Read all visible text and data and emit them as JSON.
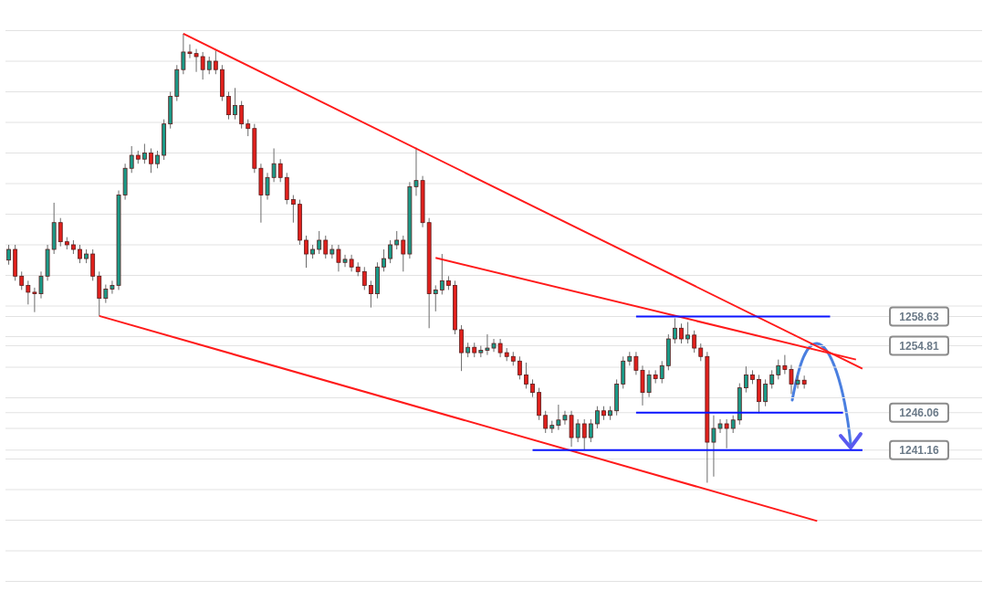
{
  "chart_data": {
    "type": "candlestick",
    "categories": [
      null,
      null,
      null,
      null,
      null,
      null,
      null,
      null,
      null,
      null,
      null,
      null,
      null,
      null,
      null,
      null,
      null,
      null,
      null,
      null,
      null,
      null,
      null,
      null,
      null,
      null,
      null,
      null,
      null,
      null,
      null,
      null,
      null,
      null,
      null,
      null,
      null,
      null,
      null,
      null,
      null,
      null,
      null,
      null,
      null,
      null,
      null,
      null,
      null,
      null,
      null,
      null,
      null,
      null,
      null,
      null,
      null,
      null,
      null,
      null,
      null,
      null,
      null,
      null,
      null,
      null,
      null,
      null,
      null,
      null,
      null,
      null,
      null,
      null,
      null,
      null,
      null,
      null,
      null,
      null,
      null,
      null,
      null,
      null,
      null,
      null,
      null,
      null,
      null,
      null,
      null,
      null,
      null,
      null,
      null,
      null,
      null,
      null,
      null,
      null,
      null,
      null,
      null,
      null,
      null,
      null,
      null,
      null,
      null,
      null,
      null,
      null,
      null,
      null,
      null,
      null,
      null,
      null,
      null,
      null,
      null,
      null,
      null,
      null,
      null,
      null,
      null,
      null,
      null,
      null,
      null,
      null,
      null,
      null,
      null,
      null,
      null,
      null,
      null,
      null,
      null,
      null,
      null,
      null,
      null,
      null,
      null,
      null,
      null,
      null,
      null
    ],
    "ohlc": [
      [
        1266.0,
        1268.0,
        1265.4,
        1267.4
      ],
      [
        1267.4,
        1268.0,
        1263.3,
        1263.9
      ],
      [
        1263.9,
        1264.5,
        1262.1,
        1262.7
      ],
      [
        1262.7,
        1263.3,
        1260.2,
        1261.8
      ],
      [
        1261.8,
        1262.4,
        1259.2,
        1261.6
      ],
      [
        1261.6,
        1264.5,
        1261.0,
        1263.9
      ],
      [
        1263.9,
        1268.0,
        1263.3,
        1267.4
      ],
      [
        1267.4,
        1273.5,
        1266.8,
        1270.9
      ],
      [
        1270.9,
        1271.5,
        1267.8,
        1268.4
      ],
      [
        1268.4,
        1269.0,
        1267.4,
        1268.0
      ],
      [
        1268.0,
        1268.6,
        1266.8,
        1267.4
      ],
      [
        1267.4,
        1268.0,
        1265.6,
        1266.2
      ],
      [
        1266.2,
        1267.4,
        1265.6,
        1266.8
      ],
      [
        1266.8,
        1267.4,
        1263.3,
        1263.9
      ],
      [
        1263.9,
        1264.5,
        1258.7,
        1261.0
      ],
      [
        1261.0,
        1262.8,
        1260.4,
        1262.2
      ],
      [
        1262.2,
        1263.3,
        1261.6,
        1262.7
      ],
      [
        1262.7,
        1275.1,
        1262.1,
        1274.5
      ],
      [
        1274.5,
        1278.6,
        1273.9,
        1278.0
      ],
      [
        1278.0,
        1280.9,
        1277.4,
        1279.7
      ],
      [
        1279.7,
        1280.3,
        1278.6,
        1279.2
      ],
      [
        1279.2,
        1281.2,
        1278.6,
        1280.0
      ],
      [
        1280.0,
        1280.6,
        1277.4,
        1278.6
      ],
      [
        1278.6,
        1280.3,
        1278.0,
        1279.7
      ],
      [
        1279.7,
        1284.4,
        1279.1,
        1283.8
      ],
      [
        1283.8,
        1288.0,
        1283.2,
        1287.4
      ],
      [
        1287.4,
        1291.5,
        1286.8,
        1290.9
      ],
      [
        1290.9,
        1295.6,
        1290.3,
        1293.2
      ],
      [
        1293.2,
        1294.2,
        1292.4,
        1293.0
      ],
      [
        1293.0,
        1293.6,
        1290.6,
        1292.6
      ],
      [
        1292.6,
        1293.2,
        1289.6,
        1290.9
      ],
      [
        1290.9,
        1292.6,
        1290.3,
        1292.0
      ],
      [
        1292.0,
        1293.4,
        1290.3,
        1290.9
      ],
      [
        1290.9,
        1291.5,
        1286.8,
        1287.4
      ],
      [
        1287.4,
        1288.0,
        1284.4,
        1285.0
      ],
      [
        1285.0,
        1288.5,
        1284.4,
        1286.2
      ],
      [
        1286.2,
        1286.8,
        1283.2,
        1283.8
      ],
      [
        1283.8,
        1284.4,
        1282.2,
        1283.2
      ],
      [
        1283.2,
        1283.8,
        1277.4,
        1278.0
      ],
      [
        1278.0,
        1278.6,
        1270.9,
        1274.5
      ],
      [
        1274.5,
        1277.4,
        1273.9,
        1276.8
      ],
      [
        1276.8,
        1280.6,
        1276.2,
        1278.6
      ],
      [
        1278.6,
        1279.2,
        1276.2,
        1276.8
      ],
      [
        1276.8,
        1277.4,
        1273.3,
        1273.9
      ],
      [
        1273.9,
        1274.5,
        1270.9,
        1273.3
      ],
      [
        1273.3,
        1273.9,
        1268.0,
        1268.6
      ],
      [
        1268.6,
        1269.2,
        1265.0,
        1266.8
      ],
      [
        1266.8,
        1268.0,
        1266.2,
        1267.4
      ],
      [
        1267.4,
        1269.8,
        1266.8,
        1268.6
      ],
      [
        1268.6,
        1269.2,
        1266.2,
        1266.8
      ],
      [
        1266.8,
        1268.0,
        1266.2,
        1267.4
      ],
      [
        1267.4,
        1268.0,
        1264.5,
        1265.7
      ],
      [
        1265.7,
        1266.7,
        1265.1,
        1266.1
      ],
      [
        1266.1,
        1266.7,
        1264.5,
        1265.1
      ],
      [
        1265.1,
        1265.7,
        1263.9,
        1264.5
      ],
      [
        1264.5,
        1265.1,
        1262.1,
        1262.7
      ],
      [
        1262.7,
        1263.3,
        1259.8,
        1261.6
      ],
      [
        1261.6,
        1265.7,
        1261.0,
        1265.1
      ],
      [
        1265.1,
        1267.4,
        1264.5,
        1266.2
      ],
      [
        1266.2,
        1268.6,
        1265.6,
        1268.0
      ],
      [
        1268.0,
        1269.8,
        1267.4,
        1268.6
      ],
      [
        1268.6,
        1269.2,
        1264.5,
        1266.8
      ],
      [
        1266.8,
        1276.2,
        1266.2,
        1275.6
      ],
      [
        1275.6,
        1280.7,
        1274.4,
        1276.4
      ],
      [
        1276.4,
        1277.0,
        1270.3,
        1270.9
      ],
      [
        1270.9,
        1271.5,
        1257.1,
        1261.6
      ],
      [
        1261.6,
        1262.7,
        1259.3,
        1262.1
      ],
      [
        1262.1,
        1266.8,
        1261.5,
        1263.3
      ],
      [
        1263.3,
        1263.9,
        1262.1,
        1262.7
      ],
      [
        1262.7,
        1263.3,
        1256.3,
        1256.9
      ],
      [
        1256.9,
        1257.5,
        1251.5,
        1253.9
      ],
      [
        1253.9,
        1255.2,
        1253.3,
        1254.6
      ],
      [
        1254.6,
        1255.2,
        1253.3,
        1253.9
      ],
      [
        1253.9,
        1254.8,
        1253.3,
        1254.2
      ],
      [
        1254.2,
        1256.3,
        1253.6,
        1254.5
      ],
      [
        1254.5,
        1255.7,
        1254.0,
        1255.1
      ],
      [
        1255.1,
        1255.7,
        1253.3,
        1253.9
      ],
      [
        1253.9,
        1254.5,
        1252.8,
        1253.4
      ],
      [
        1253.4,
        1254.0,
        1252.2,
        1252.8
      ],
      [
        1252.8,
        1253.4,
        1250.4,
        1251.0
      ],
      [
        1251.0,
        1252.6,
        1249.2,
        1249.8
      ],
      [
        1249.8,
        1250.4,
        1248.1,
        1248.7
      ],
      [
        1248.7,
        1249.3,
        1245.1,
        1245.7
      ],
      [
        1245.7,
        1246.3,
        1243.4,
        1244.0
      ],
      [
        1244.0,
        1245.0,
        1243.4,
        1244.4
      ],
      [
        1244.4,
        1247.1,
        1243.8,
        1245.1
      ],
      [
        1245.1,
        1246.3,
        1244.5,
        1245.7
      ],
      [
        1245.7,
        1246.3,
        1241.6,
        1242.8
      ],
      [
        1242.8,
        1245.2,
        1242.2,
        1244.6
      ],
      [
        1244.6,
        1245.2,
        1241.2,
        1242.8
      ],
      [
        1242.8,
        1245.2,
        1242.2,
        1244.6
      ],
      [
        1244.6,
        1246.9,
        1244.0,
        1246.3
      ],
      [
        1246.3,
        1246.9,
        1245.1,
        1245.7
      ],
      [
        1245.7,
        1246.9,
        1245.1,
        1246.3
      ],
      [
        1246.3,
        1250.4,
        1245.7,
        1249.8
      ],
      [
        1249.8,
        1253.4,
        1249.2,
        1252.8
      ],
      [
        1252.8,
        1254.0,
        1252.2,
        1253.4
      ],
      [
        1253.4,
        1254.0,
        1251.0,
        1251.6
      ],
      [
        1251.6,
        1252.2,
        1247.0,
        1248.7
      ],
      [
        1248.7,
        1251.6,
        1248.1,
        1251.0
      ],
      [
        1251.0,
        1251.6,
        1249.9,
        1250.5
      ],
      [
        1250.5,
        1252.8,
        1249.9,
        1252.2
      ],
      [
        1252.2,
        1256.3,
        1251.6,
        1255.7
      ],
      [
        1255.7,
        1258.4,
        1255.1,
        1257.1
      ],
      [
        1257.1,
        1257.7,
        1255.1,
        1255.7
      ],
      [
        1255.7,
        1257.9,
        1255.1,
        1256.2
      ],
      [
        1256.2,
        1256.8,
        1253.9,
        1254.5
      ],
      [
        1254.5,
        1255.1,
        1252.8,
        1253.4
      ],
      [
        1253.4,
        1254.0,
        1236.9,
        1242.2
      ],
      [
        1242.2,
        1245.7,
        1237.7,
        1244.0
      ],
      [
        1244.0,
        1245.2,
        1243.4,
        1244.6
      ],
      [
        1244.6,
        1245.2,
        1241.4,
        1244.0
      ],
      [
        1244.0,
        1245.7,
        1243.4,
        1245.1
      ],
      [
        1245.1,
        1249.9,
        1244.5,
        1249.3
      ],
      [
        1249.3,
        1252.1,
        1248.7,
        1251.0
      ],
      [
        1251.0,
        1251.6,
        1249.8,
        1250.4
      ],
      [
        1250.4,
        1251.0,
        1246.0,
        1247.5
      ],
      [
        1247.5,
        1250.4,
        1246.9,
        1249.8
      ],
      [
        1249.8,
        1251.6,
        1249.2,
        1251.0
      ],
      [
        1251.0,
        1253.0,
        1250.4,
        1252.2
      ],
      [
        1252.2,
        1253.6,
        1251.1,
        1251.7
      ],
      [
        1251.7,
        1252.3,
        1248.5,
        1249.8
      ],
      [
        1249.8,
        1250.9,
        1249.2,
        1250.3
      ],
      [
        1250.3,
        1250.9,
        1249.2,
        1249.8
      ],
      null,
      null,
      null,
      null,
      null,
      null,
      null,
      null,
      null,
      null,
      null,
      null,
      null,
      null,
      null,
      null,
      null,
      null,
      null,
      null,
      null,
      null,
      null,
      null,
      null,
      null,
      null
    ],
    "colors": [
      "#1b9a88",
      "#e0201c",
      "#e0201c",
      "#e0201c",
      "#e0201c",
      "#1b9a88",
      "#1b9a88",
      "#1b9a88",
      "#e0201c",
      "#e0201c",
      "#e0201c",
      "#e0201c",
      "#1b9a88",
      "#e0201c",
      "#e0201c",
      "#1b9a88",
      "#1b9a88",
      "#1b9a88",
      "#1b9a88",
      "#1b9a88",
      "#e0201c",
      "#1b9a88",
      "#e0201c",
      "#1b9a88",
      "#1b9a88",
      "#1b9a88",
      "#1b9a88",
      "#1b9a88",
      "#e0201c",
      "#e0201c",
      "#e0201c",
      "#1b9a88",
      "#e0201c",
      "#e0201c",
      "#e0201c",
      "#1b9a88",
      "#e0201c",
      "#e0201c",
      "#e0201c",
      "#e0201c",
      "#1b9a88",
      "#1b9a88",
      "#e0201c",
      "#e0201c",
      "#e0201c",
      "#e0201c",
      "#e0201c",
      "#1b9a88",
      "#1b9a88",
      "#e0201c",
      "#1b9a88",
      "#e0201c",
      "#1b9a88",
      "#e0201c",
      "#e0201c",
      "#e0201c",
      "#e0201c",
      "#1b9a88",
      "#1b9a88",
      "#1b9a88",
      "#1b9a88",
      "#e0201c",
      "#1b9a88",
      "#1b9a88",
      "#e0201c",
      "#e0201c",
      "#1b9a88",
      "#1b9a88",
      "#e0201c",
      "#e0201c",
      "#e0201c",
      "#1b9a88",
      "#e0201c",
      "#1b9a88",
      "#1b9a88",
      "#1b9a88",
      "#e0201c",
      "#e0201c",
      "#e0201c",
      "#e0201c",
      "#e0201c",
      "#e0201c",
      "#e0201c",
      "#e0201c",
      "#1b9a88",
      "#1b9a88",
      "#1b9a88",
      "#e0201c",
      "#1b9a88",
      "#e0201c",
      "#1b9a88",
      "#1b9a88",
      "#e0201c",
      "#1b9a88",
      "#1b9a88",
      "#1b9a88",
      "#1b9a88",
      "#e0201c",
      "#e0201c",
      "#1b9a88",
      "#e0201c",
      "#1b9a88",
      "#1b9a88",
      "#1b9a88",
      "#e0201c",
      "#1b9a88",
      "#e0201c",
      "#e0201c",
      "#e0201c",
      "#1b9a88",
      "#1b9a88",
      "#e0201c",
      "#1b9a88",
      "#1b9a88",
      "#1b9a88",
      "#e0201c",
      "#e0201c",
      "#1b9a88",
      "#1b9a88",
      "#1b9a88",
      "#e0201c",
      "#e0201c",
      "#1b9a88",
      "#e0201c",
      null,
      null,
      null,
      null,
      null,
      null,
      null,
      null,
      null,
      null,
      null,
      null,
      null,
      null,
      null,
      null,
      null,
      null,
      null,
      null,
      null,
      null,
      null,
      null,
      null,
      null,
      null
    ],
    "series": [
      {
        "type": "line",
        "color": "#ff1a1a",
        "values": [
          null,
          null,
          null,
          null,
          null,
          null,
          null,
          null,
          null,
          null,
          null,
          null,
          null,
          null,
          null,
          null,
          null,
          null,
          null,
          null,
          null,
          null,
          null,
          null,
          null,
          null,
          null,
          1295.6,
          null,
          null,
          null,
          null,
          null,
          null,
          null,
          null,
          null,
          null,
          null,
          null,
          null,
          null,
          null,
          null,
          null,
          null,
          null,
          null,
          null,
          null,
          null,
          null,
          null,
          null,
          null,
          null,
          null,
          null,
          null,
          null,
          null,
          null,
          null,
          null,
          null,
          null,
          null,
          null,
          null,
          null,
          null,
          null,
          null,
          null,
          null,
          null,
          null,
          null,
          null,
          null,
          null,
          null,
          null,
          null,
          null,
          null,
          null,
          null,
          null,
          null,
          null,
          null,
          null,
          null,
          null,
          null,
          null,
          null,
          null,
          null,
          null,
          null,
          null,
          null,
          null,
          null,
          null,
          null,
          null,
          null,
          null,
          null,
          null,
          null,
          null,
          null,
          null,
          null,
          null,
          null,
          null,
          null,
          null,
          null,
          null,
          null,
          null,
          null,
          null,
          null,
          null,
          null,
          1251.8,
          null,
          null,
          null,
          null,
          null,
          null,
          null,
          null,
          null,
          null,
          null,
          null,
          null,
          null,
          null,
          null,
          null,
          null
        ]
      },
      {
        "type": "line",
        "color": "#ff1a1a",
        "values": [
          null,
          null,
          null,
          null,
          null,
          null,
          null,
          null,
          null,
          null,
          null,
          null,
          null,
          null,
          null,
          null,
          null,
          null,
          null,
          null,
          null,
          null,
          null,
          null,
          null,
          null,
          null,
          null,
          null,
          null,
          null,
          null,
          null,
          null,
          null,
          null,
          null,
          null,
          null,
          null,
          null,
          null,
          null,
          null,
          null,
          null,
          null,
          null,
          null,
          null,
          null,
          null,
          null,
          null,
          null,
          null,
          null,
          null,
          null,
          null,
          null,
          null,
          null,
          null,
          null,
          null,
          1266.3,
          null,
          null,
          null,
          null,
          null,
          null,
          null,
          null,
          null,
          null,
          null,
          null,
          null,
          null,
          null,
          null,
          null,
          null,
          null,
          null,
          null,
          null,
          null,
          null,
          null,
          null,
          null,
          null,
          null,
          null,
          null,
          null,
          null,
          null,
          null,
          null,
          null,
          null,
          null,
          null,
          null,
          null,
          null,
          null,
          null,
          null,
          null,
          null,
          null,
          null,
          null,
          null,
          null,
          null,
          null,
          null,
          null,
          null,
          null,
          null,
          null,
          null,
          null,
          null,
          1253.0,
          null,
          null,
          null,
          null,
          null,
          null,
          null,
          null,
          null,
          null,
          null,
          null,
          null,
          null,
          null,
          null,
          null,
          null,
          null
        ]
      },
      {
        "type": "line",
        "color": "#ff1a1a",
        "values": [
          null,
          null,
          null,
          null,
          null,
          null,
          null,
          null,
          null,
          null,
          null,
          null,
          null,
          null,
          1258.7,
          null,
          null,
          null,
          null,
          null,
          null,
          null,
          null,
          null,
          null,
          null,
          null,
          null,
          null,
          null,
          null,
          null,
          null,
          null,
          null,
          null,
          null,
          null,
          null,
          null,
          null,
          null,
          null,
          null,
          null,
          null,
          null,
          null,
          null,
          null,
          null,
          null,
          null,
          null,
          null,
          null,
          null,
          null,
          null,
          null,
          null,
          null,
          null,
          null,
          null,
          null,
          null,
          null,
          null,
          null,
          null,
          null,
          null,
          null,
          null,
          null,
          null,
          null,
          null,
          null,
          null,
          null,
          null,
          null,
          null,
          null,
          null,
          null,
          null,
          null,
          null,
          null,
          null,
          null,
          null,
          null,
          null,
          null,
          null,
          null,
          null,
          null,
          null,
          null,
          null,
          null,
          null,
          null,
          null,
          null,
          null,
          null,
          null,
          null,
          null,
          null,
          null,
          null,
          null,
          null,
          null,
          null,
          null,
          null,
          null,
          1231.9,
          null,
          null,
          null,
          null,
          null,
          null,
          null,
          null,
          null,
          null,
          null,
          null,
          null,
          null,
          null,
          null,
          null,
          null,
          null,
          null,
          null,
          null,
          null,
          null,
          null
        ]
      },
      {
        "type": "line",
        "color": "#0a14ff",
        "values": [
          null,
          null,
          null,
          null,
          null,
          null,
          null,
          null,
          null,
          null,
          null,
          null,
          null,
          null,
          null,
          null,
          null,
          null,
          null,
          null,
          null,
          null,
          null,
          null,
          null,
          null,
          null,
          null,
          null,
          null,
          null,
          null,
          null,
          null,
          null,
          null,
          null,
          null,
          null,
          null,
          null,
          null,
          null,
          null,
          null,
          null,
          null,
          null,
          null,
          null,
          null,
          null,
          null,
          null,
          null,
          null,
          null,
          null,
          null,
          null,
          null,
          null,
          null,
          null,
          null,
          null,
          null,
          null,
          null,
          null,
          null,
          null,
          null,
          null,
          null,
          null,
          null,
          null,
          null,
          null,
          null,
          null,
          null,
          null,
          null,
          null,
          null,
          null,
          null,
          null,
          null,
          null,
          null,
          null,
          null,
          null,
          null,
          1258.63,
          null,
          null,
          null,
          null,
          null,
          null,
          null,
          null,
          null,
          null,
          null,
          null,
          null,
          null,
          null,
          null,
          null,
          null,
          null,
          null,
          null,
          null,
          null,
          null,
          null,
          null,
          null,
          null,
          null,
          1258.63,
          null,
          null,
          null,
          null,
          null,
          null,
          null,
          null,
          null,
          null,
          null,
          null,
          null,
          null,
          null,
          null,
          null,
          null,
          null,
          null,
          null,
          null,
          null
        ]
      },
      {
        "type": "line",
        "color": "#0a14ff",
        "values": [
          null,
          null,
          null,
          null,
          null,
          null,
          null,
          null,
          null,
          null,
          null,
          null,
          null,
          null,
          null,
          null,
          null,
          null,
          null,
          null,
          null,
          null,
          null,
          null,
          null,
          null,
          null,
          null,
          null,
          null,
          null,
          null,
          null,
          null,
          null,
          null,
          null,
          null,
          null,
          null,
          null,
          null,
          null,
          null,
          null,
          null,
          null,
          null,
          null,
          null,
          null,
          null,
          null,
          null,
          null,
          null,
          null,
          null,
          null,
          null,
          null,
          null,
          null,
          null,
          null,
          null,
          null,
          null,
          null,
          null,
          null,
          null,
          null,
          null,
          null,
          null,
          null,
          null,
          null,
          null,
          null,
          null,
          null,
          null,
          null,
          null,
          null,
          null,
          null,
          null,
          null,
          null,
          null,
          null,
          null,
          null,
          null,
          1246.06,
          null,
          null,
          null,
          null,
          null,
          null,
          null,
          null,
          null,
          null,
          null,
          null,
          null,
          null,
          null,
          null,
          null,
          null,
          null,
          null,
          null,
          null,
          null,
          null,
          null,
          null,
          null,
          null,
          null,
          null,
          null,
          1246.06,
          null,
          null,
          null,
          null,
          null,
          null,
          null,
          null,
          null,
          null,
          null,
          null,
          null,
          null,
          null,
          null,
          null,
          null,
          null,
          null,
          null
        ]
      },
      {
        "type": "line",
        "color": "#0a14ff",
        "values": [
          null,
          null,
          null,
          null,
          null,
          null,
          null,
          null,
          null,
          null,
          null,
          null,
          null,
          null,
          null,
          null,
          null,
          null,
          null,
          null,
          null,
          null,
          null,
          null,
          null,
          null,
          null,
          null,
          null,
          null,
          null,
          null,
          null,
          null,
          null,
          null,
          null,
          null,
          null,
          null,
          null,
          null,
          null,
          null,
          null,
          null,
          null,
          null,
          null,
          null,
          null,
          null,
          null,
          null,
          null,
          null,
          null,
          null,
          null,
          null,
          null,
          null,
          null,
          null,
          null,
          null,
          null,
          null,
          null,
          null,
          null,
          null,
          null,
          null,
          null,
          null,
          null,
          null,
          null,
          null,
          null,
          1241.16,
          null,
          null,
          null,
          null,
          null,
          null,
          null,
          null,
          null,
          null,
          null,
          null,
          null,
          null,
          null,
          null,
          null,
          null,
          null,
          null,
          null,
          null,
          null,
          null,
          null,
          null,
          null,
          null,
          null,
          null,
          null,
          null,
          null,
          null,
          null,
          null,
          null,
          null,
          null,
          null,
          null,
          null,
          null,
          null,
          null,
          null,
          null,
          null,
          null,
          null,
          1241.16,
          null,
          null,
          null,
          null,
          null,
          null,
          null,
          null,
          null,
          null,
          null,
          null,
          null,
          null,
          null,
          null,
          null,
          null
        ]
      }
    ],
    "ylim": [
      1220,
      1300
    ],
    "yticks": [
      {
        "value": 1224,
        "label": null
      },
      {
        "value": 1228,
        "label": null
      },
      {
        "value": 1232,
        "label": null
      },
      {
        "value": 1236,
        "label": null
      },
      {
        "value": 1240,
        "label": null
      },
      1241.16,
      {
        "value": 1244,
        "label": null
      },
      1246.06,
      {
        "value": 1248,
        "label": null
      },
      {
        "value": 1252,
        "label": null
      },
      1254.81,
      {
        "value": 1256,
        "label": null
      },
      1258.63,
      {
        "value": 1260,
        "label": null
      },
      {
        "value": 1264,
        "label": null
      },
      {
        "value": 1268,
        "label": null
      },
      {
        "value": 1272,
        "label": null
      },
      {
        "value": 1276,
        "label": null
      },
      {
        "value": 1280,
        "label": null
      },
      {
        "value": 1284,
        "label": null
      },
      {
        "value": 1288,
        "label": null
      },
      {
        "value": 1292,
        "label": null
      },
      {
        "value": 1296,
        "label": null
      }
    ],
    "grid": "y",
    "tick_labels": "y"
  }
}
